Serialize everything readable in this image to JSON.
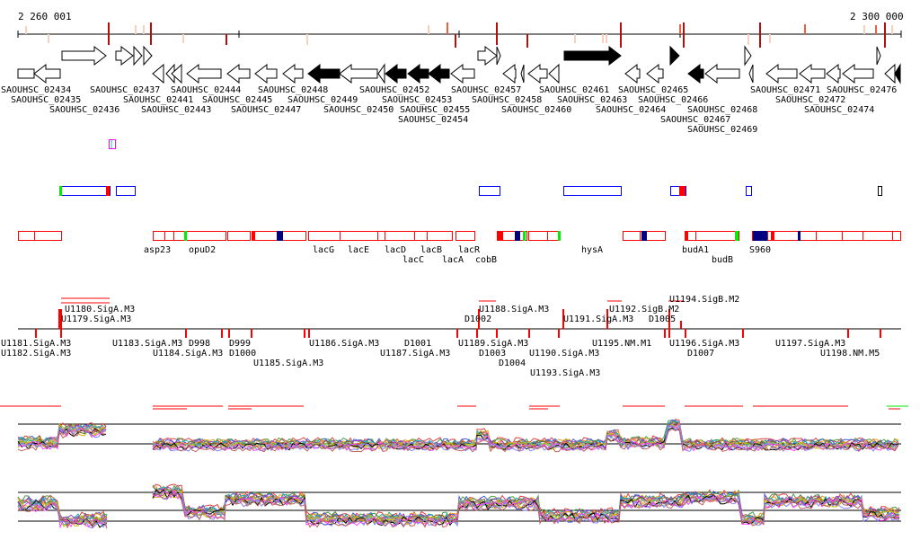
{
  "ruler": {
    "start_label": "2 260 001",
    "end_label": "2 300 000"
  },
  "genes": {
    "labels": [
      "SAOUHSC_02437",
      "SAOUHSC_02457",
      "SAOUHSC_02434",
      "SAOUHSC_02436",
      "SAOUHSC_02441",
      "SAOUHSC_02444",
      "SAOUHSC_02448",
      "SAOUHSC_02454",
      "SAOUHSC_02463",
      "SAOUHSC_02466",
      "SAOUHSC_02468",
      "SAOUHSC_02471",
      "SAOUHSC_02474",
      "SAOUHSC_02435",
      "SAOUHSC_02445",
      "SAOUHSC_02449",
      "SAOUHSC_02452",
      "SAOUHSC_02455",
      "SAOUHSC_02460",
      "SAOUHSC_02465",
      "SAOUHSC_02469",
      "SAOUHSC_02472",
      "SAOUHSC_02443",
      "SAOUHSC_02447",
      "SAOUHSC_02450",
      "SAOUHSC_02453",
      "SAOUHSC_02458",
      "SAOUHSC_02461",
      "SAOUHSC_02464",
      "SAOUHSC_02467",
      "SAOUHSC_02476"
    ]
  },
  "features": {
    "labels": [
      "cobB",
      "hysA",
      "asp23",
      "opuD2",
      "lacG",
      "lacE",
      "lacD",
      "lacC",
      "lacB",
      "lacA",
      "lacR",
      "budA1",
      "budB",
      "S960"
    ]
  },
  "regulatory": {
    "labels": [
      "U1179.SigA.M3",
      "U1180.SigA.M3",
      "U1188.SigA.M3",
      "D1002",
      "U1191.SigA.M3",
      "U1192.SigB.M2",
      "D1005",
      "U1194.SigB.M2",
      "U1181.SigA.M3",
      "U1182.SigA.M3",
      "U1183.SigA.M3",
      "U1184.SigA.M3",
      "D998",
      "D999",
      "U1185.SigA.M3",
      "D1000",
      "U1186.SigA.M3",
      "U1187.SigA.M3",
      "D1001",
      "U1189.SigA.M3",
      "D1003",
      "D1004",
      "U1190.SigA.M3",
      "U1193.SigA.M3",
      "U1195.NM.M1",
      "D1007",
      "U1196.SigA.M3",
      "U1197.SigA.M3",
      "U1198.NM.M5"
    ]
  },
  "colors": {
    "dark_red": "#b01010",
    "light_red": "#f8d0c0",
    "red": "#ff0000",
    "blue": "#0000ff",
    "navy": "#000080",
    "green": "#00ee00",
    "magenta": "#ff00ff"
  }
}
